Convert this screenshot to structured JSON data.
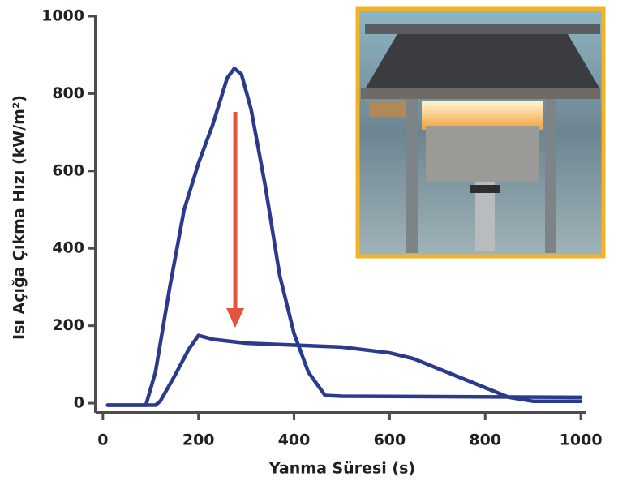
{
  "chart_data": {
    "type": "line",
    "xlabel": "Yanma Süresi (s)",
    "ylabel": "Isı Açığa Çıkma Hızı (kW/m²)",
    "xlim": [
      -15,
      1010
    ],
    "ylim": [
      -25,
      1000
    ],
    "xticks": [
      0,
      200,
      400,
      600,
      800,
      1000
    ],
    "yticks": [
      0,
      200,
      400,
      600,
      800,
      1000
    ],
    "grid": false,
    "series": [
      {
        "color": "#2b3a8c",
        "x": [
          10,
          90,
          110,
          140,
          170,
          200,
          230,
          260,
          275,
          290,
          310,
          340,
          370,
          400,
          430,
          465,
          500,
          700,
          1000
        ],
        "values": [
          -5,
          -5,
          80,
          300,
          500,
          620,
          720,
          840,
          865,
          850,
          760,
          560,
          330,
          180,
          80,
          20,
          18,
          17,
          15
        ]
      },
      {
        "color": "#2b3a8c",
        "x": [
          10,
          110,
          120,
          150,
          180,
          200,
          230,
          300,
          400,
          500,
          600,
          650,
          700,
          800,
          850,
          900,
          1000
        ],
        "values": [
          -5,
          -5,
          5,
          70,
          140,
          175,
          165,
          155,
          150,
          145,
          130,
          115,
          90,
          40,
          15,
          5,
          5
        ]
      }
    ]
  }
}
